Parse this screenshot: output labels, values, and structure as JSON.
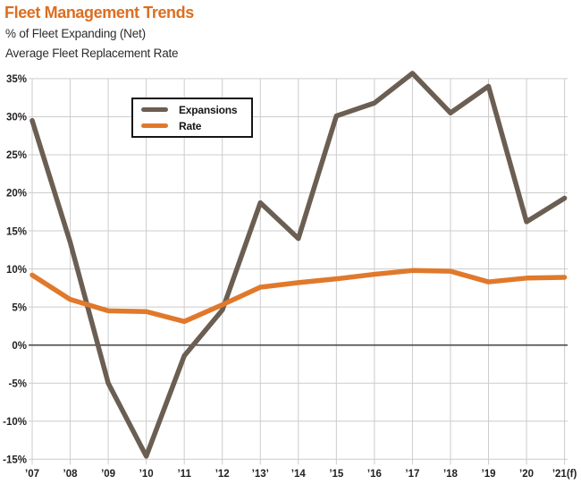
{
  "header": {
    "title": "Fleet Management Trends",
    "subtitle1": "% of Fleet Expanding (Net)",
    "subtitle2": "Average Fleet Replacement Rate"
  },
  "colors": {
    "title_orange": "#DC6E20",
    "expansions": "#6B5E52",
    "rate": "#E0792B",
    "grid": "#CCCCCC",
    "zero_line": "#4A4A4A",
    "text": "#221F1F"
  },
  "legend": {
    "items": [
      {
        "label": "Expansions",
        "color_key": "expansions"
      },
      {
        "label": "Rate",
        "color_key": "rate"
      }
    ]
  },
  "chart_data": {
    "type": "line",
    "title": "Fleet Management Trends",
    "categories": [
      "’07",
      "’08",
      "’09",
      "’10",
      "’11",
      "’12",
      "’13’",
      "’14",
      "’15",
      "’16",
      "’17",
      "’18",
      "’19",
      "’20",
      "’21(f)"
    ],
    "series": [
      {
        "name": "Expansions",
        "values": [
          29.5,
          13.5,
          -5.0,
          -14.6,
          -1.4,
          4.6,
          18.7,
          14.0,
          30.1,
          31.8,
          35.7,
          30.5,
          34.0,
          16.2,
          19.3
        ]
      },
      {
        "name": "Rate",
        "values": [
          9.2,
          6.0,
          4.5,
          4.4,
          3.1,
          5.3,
          7.6,
          8.2,
          8.7,
          9.3,
          9.8,
          9.7,
          8.3,
          8.8,
          8.9
        ]
      }
    ],
    "ylim": [
      -15,
      35
    ],
    "ytick_step": 5,
    "ytick_suffix": "%",
    "grid": true,
    "legend_position": "top-left-inside"
  }
}
